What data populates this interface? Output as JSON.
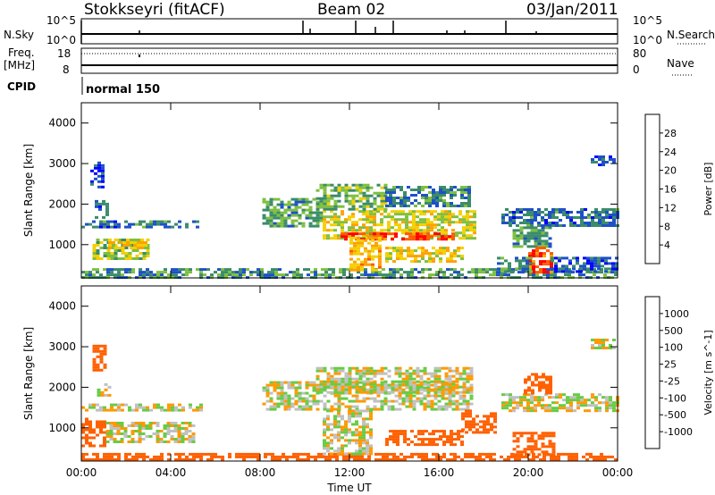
{
  "header": {
    "station": "Stokkseyri (fitACF)",
    "beam": "Beam 02",
    "date": "03/Jan/2011"
  },
  "status_panels": {
    "nsky": {
      "label": "N.Sky",
      "axis_top": "10^5",
      "axis_bottom": "10^0",
      "right_label": "N.Search",
      "right_top": "10^5",
      "right_bottom": "10^0"
    },
    "freq": {
      "label_line1": "Freq.",
      "label_line2": "[MHz]",
      "axis_top": "18",
      "axis_bottom": "8",
      "right_label": "Nave",
      "right_top": "80",
      "right_bottom": "0"
    },
    "cpid": {
      "label": "CPID",
      "mode_text": "normal 150"
    }
  },
  "colors": {
    "power_scale": [
      "#0000ff",
      "#1e50c8",
      "#3a8c6a",
      "#7fbf3f",
      "#f2d000",
      "#ffa000",
      "#ff5a00",
      "#ff0000"
    ],
    "velocity_scale": [
      "#1a3ccc",
      "#2e78b0",
      "#3aa850",
      "#66cc44",
      "#c0c0c0",
      "#c0c0c0",
      "#ff9900",
      "#ff6000",
      "#ff0000"
    ],
    "ground_scatter": "#bebebe"
  },
  "chart_data": [
    {
      "type": "heatmap",
      "name": "power",
      "ylabel": "Slant Range [km]",
      "x_ticks": [
        "00:00",
        "04:00",
        "08:00",
        "12:00",
        "16:00",
        "20:00",
        "00:00"
      ],
      "y_ticks": [
        "1000",
        "2000",
        "3000",
        "4000"
      ],
      "ylim": [
        180,
        4500
      ],
      "xlim_hours": [
        0,
        24
      ],
      "colorbar": {
        "label": "Power [dB]",
        "ticks": [
          "4",
          "8",
          "12",
          "16",
          "20",
          "24",
          "28"
        ],
        "range": [
          0,
          32
        ]
      },
      "regions": [
        {
          "t": [
            0.0,
            24.0
          ],
          "r": [
            200,
            420
          ],
          "v": 10
        },
        {
          "t": [
            0.5,
            3.0
          ],
          "r": [
            650,
            1150
          ],
          "v": 14
        },
        {
          "t": [
            1.2,
            2.9
          ],
          "r": [
            900,
            1150
          ],
          "v": 19
        },
        {
          "t": [
            0.0,
            5.3
          ],
          "r": [
            1450,
            1600
          ],
          "v": 8
        },
        {
          "t": [
            0.6,
            1.1
          ],
          "r": [
            1700,
            2100
          ],
          "v": 7
        },
        {
          "t": [
            0.4,
            0.9
          ],
          "r": [
            2400,
            3050
          ],
          "v": 5
        },
        {
          "t": [
            8.1,
            10.8
          ],
          "r": [
            1450,
            2150
          ],
          "v": 11
        },
        {
          "t": [
            10.8,
            17.6
          ],
          "r": [
            1150,
            1850
          ],
          "v": 17
        },
        {
          "t": [
            11.6,
            16.6
          ],
          "r": [
            1150,
            1300
          ],
          "v": 28
        },
        {
          "t": [
            10.5,
            13.6
          ],
          "r": [
            1850,
            2500
          ],
          "v": 13
        },
        {
          "t": [
            13.6,
            17.4
          ],
          "r": [
            1950,
            2450
          ],
          "v": 9
        },
        {
          "t": [
            12.0,
            13.3
          ],
          "r": [
            350,
            1200
          ],
          "v": 20
        },
        {
          "t": [
            13.6,
            17.0
          ],
          "r": [
            600,
            950
          ],
          "v": 19
        },
        {
          "t": [
            18.8,
            24.0
          ],
          "r": [
            1450,
            1900
          ],
          "v": 8
        },
        {
          "t": [
            19.3,
            21.0
          ],
          "r": [
            950,
            1450
          ],
          "v": 11
        },
        {
          "t": [
            20.0,
            21.0
          ],
          "r": [
            350,
            950
          ],
          "v": 27
        },
        {
          "t": [
            18.6,
            20.2
          ],
          "r": [
            350,
            700
          ],
          "v": 9
        },
        {
          "t": [
            21.0,
            24.0
          ],
          "r": [
            350,
            700
          ],
          "v": 6
        },
        {
          "t": [
            22.8,
            23.8
          ],
          "r": [
            3000,
            3200
          ],
          "v": 6
        }
      ]
    },
    {
      "type": "heatmap",
      "name": "velocity",
      "ylabel": "Slant Range [km]",
      "xlabel": "Time UT",
      "x_ticks": [
        "00:00",
        "04:00",
        "08:00",
        "12:00",
        "16:00",
        "20:00",
        "00:00"
      ],
      "y_ticks": [
        "1000",
        "2000",
        "3000",
        "4000"
      ],
      "ylim": [
        180,
        4500
      ],
      "xlim_hours": [
        0,
        24
      ],
      "colorbar": {
        "label": "Velocity [m s^-1]",
        "ticks": [
          "1000",
          "500",
          "100",
          "25",
          "-25",
          "-100",
          "-500",
          "-1000"
        ],
        "range": [
          -1200,
          1200
        ]
      },
      "regions": [
        {
          "t": [
            0.0,
            24.0
          ],
          "r": [
            200,
            380
          ],
          "v": -200
        },
        {
          "t": [
            0.0,
            1.1
          ],
          "r": [
            550,
            1250
          ],
          "v": -400
        },
        {
          "t": [
            1.1,
            5.0
          ],
          "r": [
            650,
            1150
          ],
          "v": 0
        },
        {
          "t": [
            0.0,
            5.3
          ],
          "r": [
            1450,
            1600
          ],
          "v": 0
        },
        {
          "t": [
            0.7,
            1.2
          ],
          "r": [
            1800,
            2100
          ],
          "v": 0
        },
        {
          "t": [
            0.5,
            1.0
          ],
          "r": [
            2400,
            3050
          ],
          "v": -400
        },
        {
          "t": [
            8.1,
            17.5
          ],
          "r": [
            1450,
            2150
          ],
          "v": 0
        },
        {
          "t": [
            10.5,
            17.5
          ],
          "r": [
            1850,
            2500
          ],
          "v": 0
        },
        {
          "t": [
            10.8,
            13.0
          ],
          "r": [
            350,
            1450
          ],
          "v": 0
        },
        {
          "t": [
            13.6,
            17.0
          ],
          "r": [
            600,
            950
          ],
          "v": -400
        },
        {
          "t": [
            17.0,
            18.5
          ],
          "r": [
            900,
            1450
          ],
          "v": -400
        },
        {
          "t": [
            18.8,
            24.0
          ],
          "r": [
            1450,
            1850
          ],
          "v": 0
        },
        {
          "t": [
            19.8,
            21.0
          ],
          "r": [
            1850,
            2350
          ],
          "v": -400
        },
        {
          "t": [
            19.3,
            21.2
          ],
          "r": [
            350,
            900
          ],
          "v": -400
        },
        {
          "t": [
            22.8,
            23.8
          ],
          "r": [
            3000,
            3200
          ],
          "v": 0
        }
      ]
    }
  ]
}
